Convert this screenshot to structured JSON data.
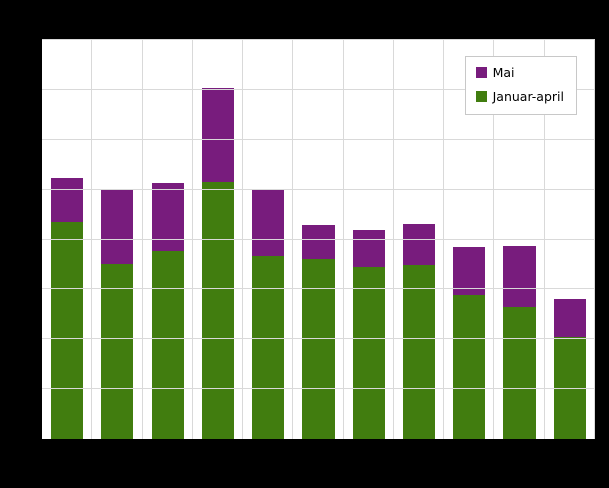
{
  "chart_data": {
    "type": "bar",
    "stacked": true,
    "title": "",
    "xlabel": "",
    "ylabel": "",
    "categories": [
      "",
      "",
      "",
      "",
      "",
      "",
      "",
      "",
      "",
      "",
      ""
    ],
    "series": [
      {
        "name": "Januar-april",
        "color": "#417d0f",
        "values": [
          54.5,
          43.75,
          47,
          64.5,
          45.75,
          45,
          43,
          43.5,
          36,
          33,
          25.5
        ]
      },
      {
        "name": "Mai",
        "color": "#781c7d",
        "values": [
          11,
          18.75,
          17.25,
          23.5,
          16.75,
          8.75,
          9.5,
          10.5,
          12.25,
          15.5,
          9.5
        ]
      }
    ],
    "ylim": [
      0,
      100
    ],
    "gridline_step": 12.5,
    "grid": true,
    "legend_position": "top-right",
    "background": "#000000",
    "plot_background": "#ffffff"
  },
  "legend": {
    "items": [
      {
        "label": "Mai",
        "color": "#781c7d"
      },
      {
        "label": "Januar-april",
        "color": "#417d0f"
      }
    ]
  }
}
